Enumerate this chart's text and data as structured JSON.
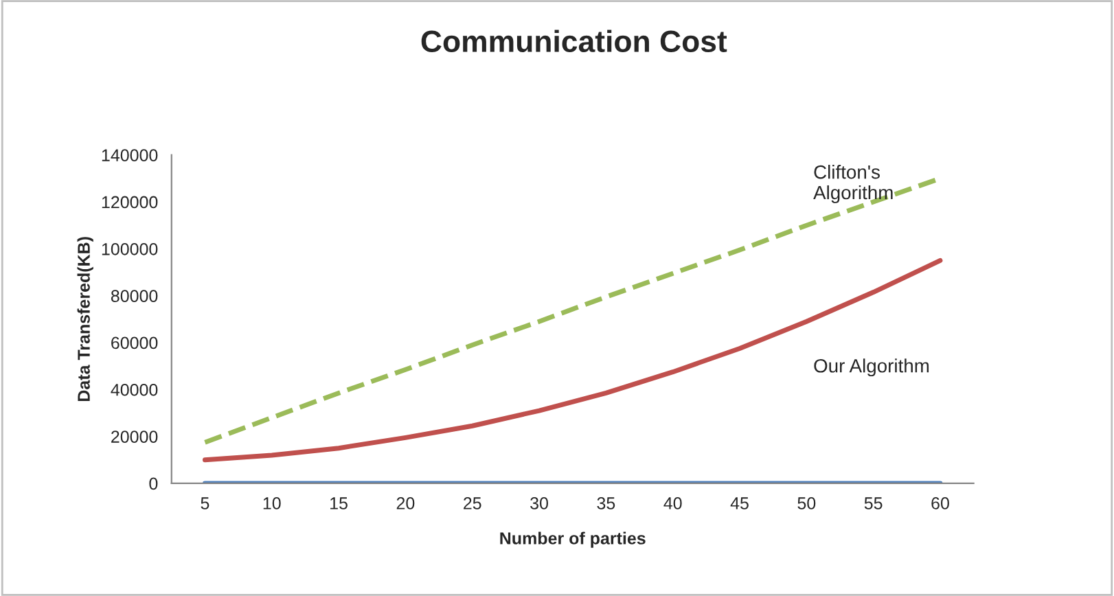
{
  "chart_data": {
    "type": "line",
    "title": "Communication Cost",
    "xlabel": "Number of parties",
    "ylabel": "Data Transfered(KB)",
    "categories": [
      "5",
      "10",
      "15",
      "20",
      "25",
      "30",
      "35",
      "40",
      "45",
      "50",
      "55",
      "60"
    ],
    "series": [
      {
        "name": "Clifton's\nAlgorithm",
        "color": "#9bbb59",
        "line_style": "dashed",
        "values": [
          17500,
          28000,
          38500,
          48500,
          59000,
          69000,
          79500,
          89500,
          99500,
          110000,
          120000,
          130000
        ]
      },
      {
        "name": "Our Algorithm",
        "color": "#c0504d",
        "line_style": "solid",
        "values": [
          10000,
          12000,
          15000,
          19500,
          24500,
          31000,
          38500,
          47500,
          57500,
          69000,
          81500,
          95000
        ]
      },
      {
        "color": "#4f81bd",
        "line_style": "solid",
        "values": [
          0,
          0,
          0,
          0,
          0,
          0,
          0,
          0,
          0,
          0,
          0,
          0
        ]
      }
    ],
    "ylim": [
      0,
      140000
    ],
    "yticks": [
      0,
      20000,
      40000,
      60000,
      80000,
      100000,
      120000,
      140000
    ],
    "grid": false,
    "legend": false,
    "marker": "none"
  }
}
